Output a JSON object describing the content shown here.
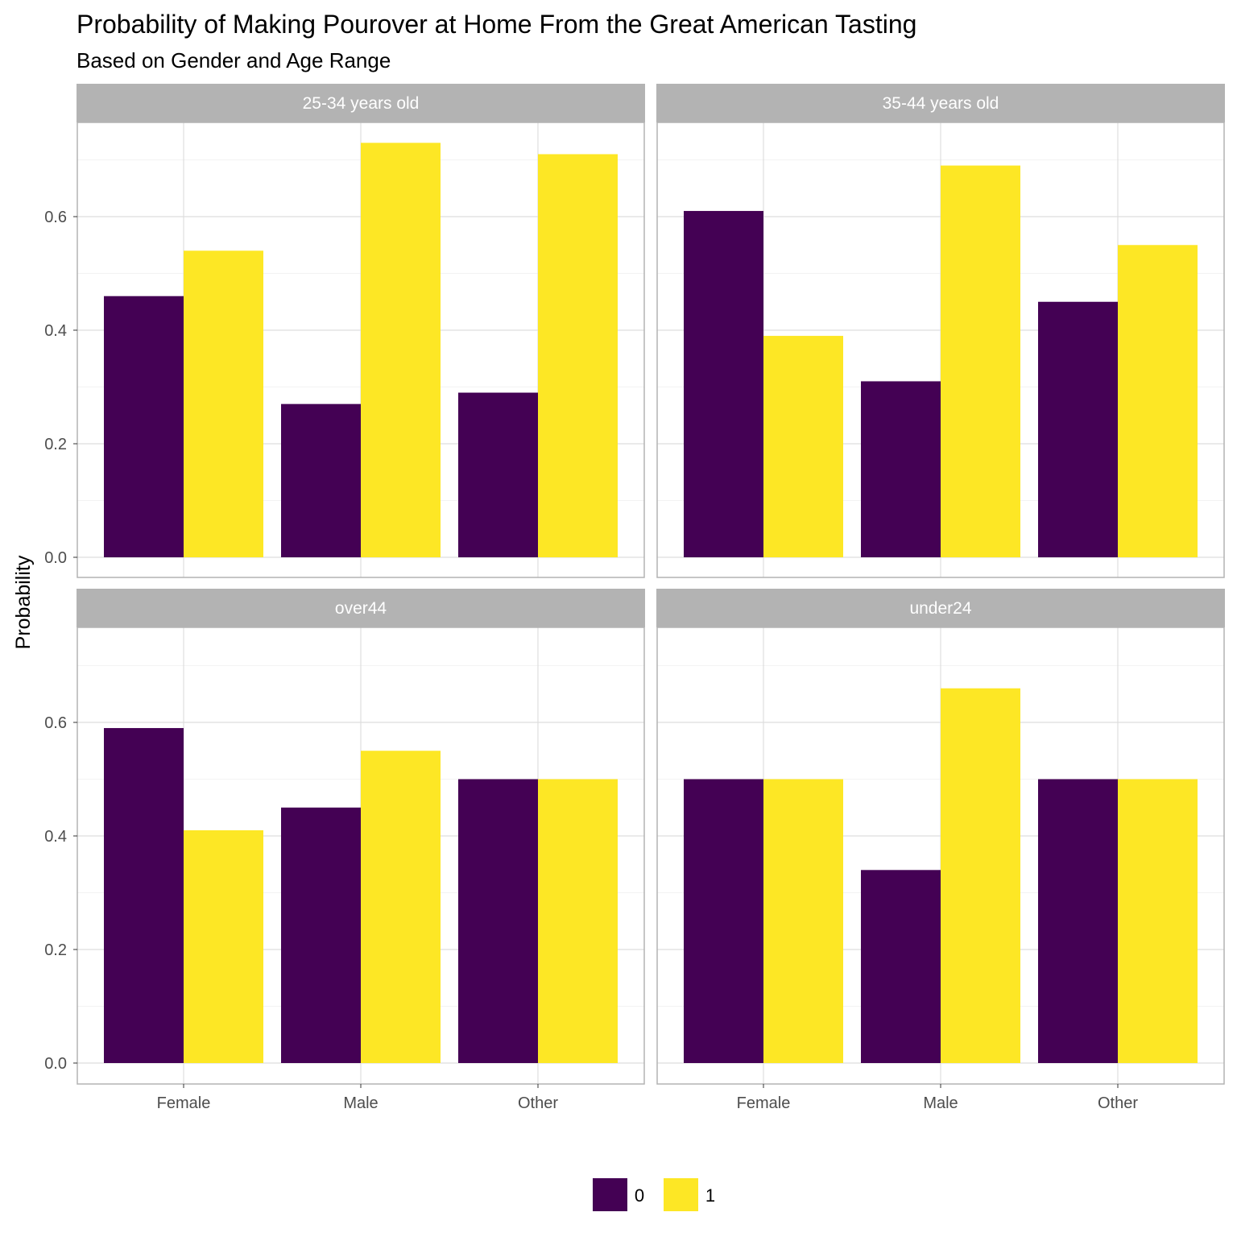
{
  "chart_data": {
    "type": "bar",
    "title": "Probability of Making Pourover at Home From the Great American Tasting",
    "subtitle": "Based on Gender and Age Range",
    "ylabel": "Probability",
    "xlabel": "",
    "ylim": [
      0,
      0.77
    ],
    "yticks": [
      "0.0",
      "0.2",
      "0.4",
      "0.6"
    ],
    "categories": [
      "Female",
      "Male",
      "Other"
    ],
    "legend": {
      "position": "bottom",
      "items": [
        {
          "label": "0",
          "color": "#440154"
        },
        {
          "label": "1",
          "color": "#FDE725"
        }
      ]
    },
    "grid": true,
    "panels": [
      {
        "label": "25-34 years old",
        "series": [
          {
            "name": "0",
            "values": [
              0.46,
              0.27,
              0.29
            ]
          },
          {
            "name": "1",
            "values": [
              0.54,
              0.73,
              0.71
            ]
          }
        ]
      },
      {
        "label": "35-44 years old",
        "series": [
          {
            "name": "0",
            "values": [
              0.61,
              0.31,
              0.45
            ]
          },
          {
            "name": "1",
            "values": [
              0.39,
              0.69,
              0.55
            ]
          }
        ]
      },
      {
        "label": "over44",
        "series": [
          {
            "name": "0",
            "values": [
              0.59,
              0.45,
              0.5
            ]
          },
          {
            "name": "1",
            "values": [
              0.41,
              0.55,
              0.5
            ]
          }
        ]
      },
      {
        "label": "under24",
        "series": [
          {
            "name": "0",
            "values": [
              0.5,
              0.34,
              0.5
            ]
          },
          {
            "name": "1",
            "values": [
              0.5,
              0.66,
              0.5
            ]
          }
        ]
      }
    ]
  }
}
